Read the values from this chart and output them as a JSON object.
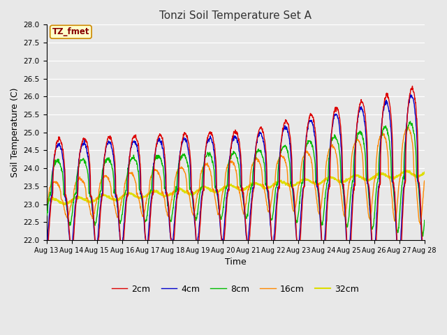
{
  "title": "Tonzi Soil Temperature Set A",
  "xlabel": "Time",
  "ylabel": "Soil Temperature (C)",
  "ylim": [
    22.0,
    28.0
  ],
  "yticks": [
    22.0,
    22.5,
    23.0,
    23.5,
    24.0,
    24.5,
    25.0,
    25.5,
    26.0,
    26.5,
    27.0,
    27.5,
    28.0
  ],
  "xtick_labels": [
    "Aug 13",
    "Aug 14",
    "Aug 15",
    "Aug 16",
    "Aug 17",
    "Aug 18",
    "Aug 19",
    "Aug 20",
    "Aug 21",
    "Aug 22",
    "Aug 23",
    "Aug 24",
    "Aug 25",
    "Aug 26",
    "Aug 27",
    "Aug 28"
  ],
  "legend_labels": [
    "2cm",
    "4cm",
    "8cm",
    "16cm",
    "32cm"
  ],
  "line_colors": [
    "#dd0000",
    "#0000cc",
    "#00bb00",
    "#ff8800",
    "#dddd00"
  ],
  "annotation_text": "TZ_fmet",
  "annotation_color": "#880000",
  "annotation_bg": "#ffffcc",
  "plot_bg": "#e8e8e8",
  "fig_bg": "#e8e8e8",
  "n_days": 15,
  "pts_per_day": 96
}
